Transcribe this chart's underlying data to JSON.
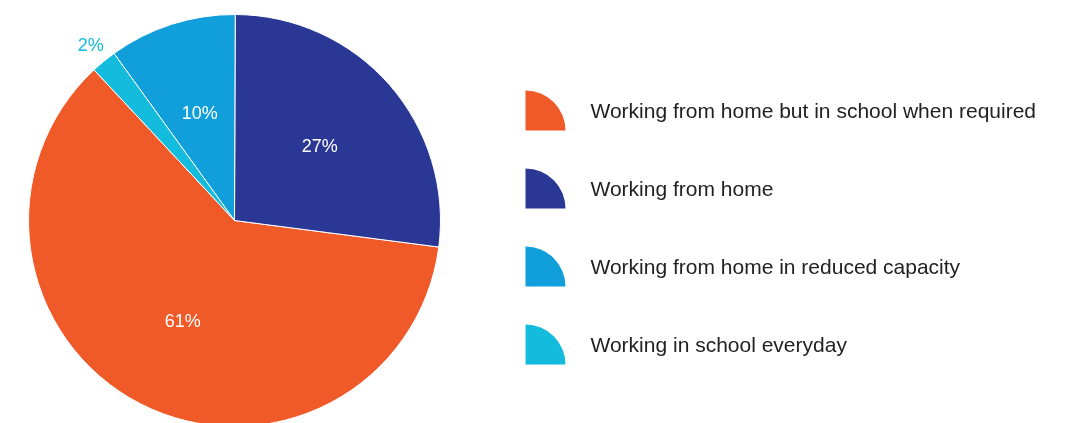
{
  "chart_data": {
    "type": "pie",
    "categories": [
      "Working from home but in school when required",
      "Working from home",
      "Working from home in reduced capacity",
      "Working in school everyday"
    ],
    "values": [
      61,
      27,
      10,
      2
    ],
    "value_labels": [
      "61%",
      "27%",
      "10%",
      "2%"
    ],
    "colors": [
      "#f05a28",
      "#2b3795",
      "#119fdc",
      "#13bcdc"
    ],
    "legend": "right"
  }
}
